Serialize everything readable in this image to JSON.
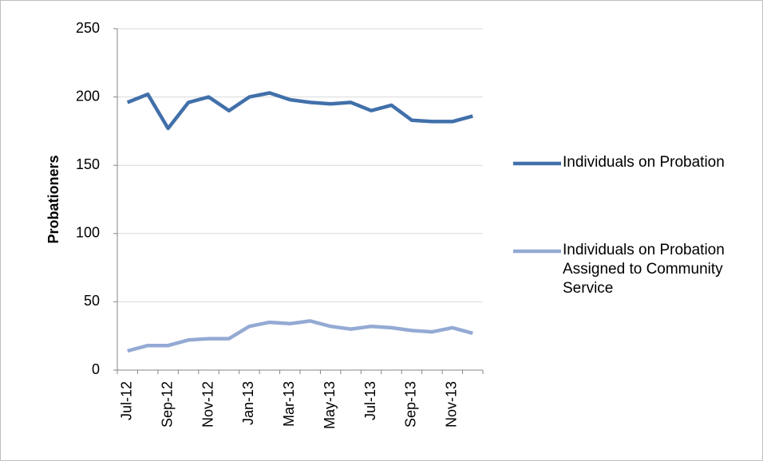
{
  "chart_data": {
    "type": "line",
    "y_label": "Probationers",
    "categories": [
      "Jul-12",
      null,
      "Sep-12",
      null,
      "Nov-12",
      null,
      "Jan-13",
      null,
      "Mar-13",
      null,
      "May-13",
      null,
      "Jul-13",
      null,
      "Sep-13",
      null,
      "Nov-13",
      null
    ],
    "series": [
      {
        "name": "Individuals on Probation",
        "color": "#4170aa",
        "values": [
          196,
          202,
          177,
          196,
          200,
          190,
          200,
          203,
          198,
          196,
          195,
          196,
          190,
          194,
          183,
          182,
          182,
          186
        ]
      },
      {
        "name": "Individuals on Probation Assigned to Community Service",
        "color": "#94aad4",
        "values": [
          14,
          18,
          18,
          22,
          23,
          23,
          32,
          35,
          34,
          36,
          32,
          30,
          32,
          31,
          29,
          28,
          31,
          27
        ]
      }
    ],
    "ylim": [
      0,
      250
    ],
    "yticks": [
      0,
      50,
      100,
      150,
      200,
      250
    ],
    "grid": true,
    "legend": "right"
  }
}
